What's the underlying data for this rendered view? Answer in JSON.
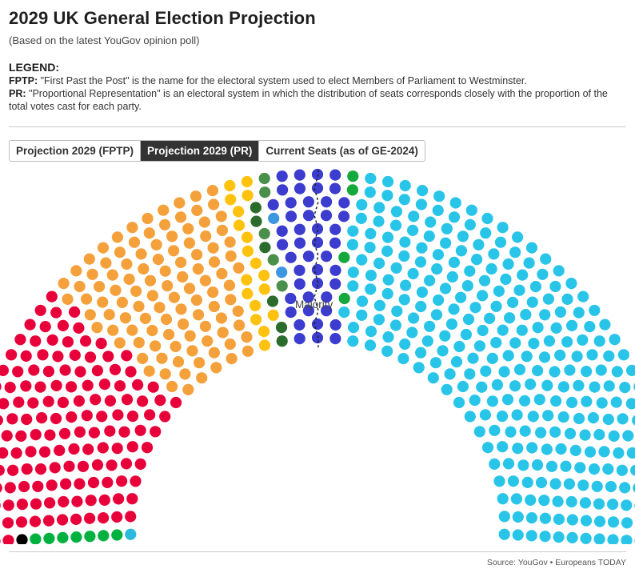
{
  "header": {
    "title": "2029 UK General Election Projection",
    "subtitle": "(Based on the latest YouGov opinion poll)"
  },
  "legend": {
    "heading": "LEGEND:",
    "fptp_term": "FPTP:",
    "fptp_text": "\"First Past the Post\" is the name for the electoral system used to elect Members of Parliament to Westminster.",
    "pr_term": "PR:",
    "pr_text": "\"Proportional Representation\" is an electoral system in which the distribution of seats corresponds closely with the proportion of the total votes cast for each party."
  },
  "tabs": [
    {
      "label": "Projection 2029 (FPTP)",
      "active": false
    },
    {
      "label": "Projection 2029 (PR)",
      "active": true
    },
    {
      "label": "Current Seats (as of GE-2024)",
      "active": false
    }
  ],
  "chart_data": {
    "type": "parliament",
    "total_seats": 650,
    "majority_label": "Majority",
    "majority_seats": 326,
    "groups": [
      {
        "color": "#2db9de",
        "seats": 1
      },
      {
        "color": "#00b140",
        "seats": 7
      },
      {
        "color": "#000000",
        "seats": 1
      },
      {
        "color": "#e8003a",
        "seats": 150
      },
      {
        "color": "#f4a13c",
        "seats": 108
      },
      {
        "color": "#ffc20e",
        "seats": 18
      },
      {
        "color": "#2b6b2b",
        "seats": 6
      },
      {
        "color": "#4a8f4a",
        "seats": 5
      },
      {
        "color": "#3c96e0",
        "seats": 2
      },
      {
        "color": "#3c3ccf",
        "seats": 46
      },
      {
        "color": "#15a83c",
        "seats": 4
      },
      {
        "color": "#29c5e8",
        "seats": 302
      }
    ]
  },
  "footer": {
    "source": "Source: YouGov • Europeans TODAY"
  }
}
